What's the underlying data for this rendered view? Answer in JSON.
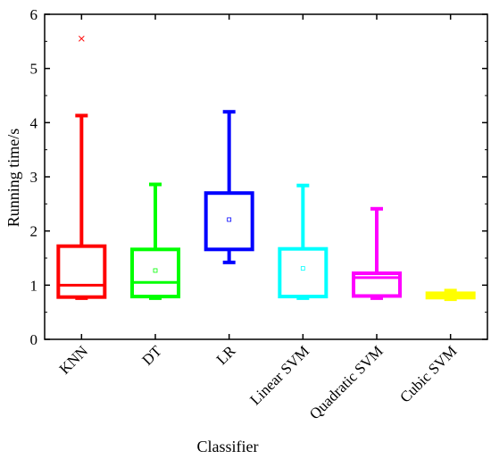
{
  "chart_data": {
    "type": "box",
    "title": "",
    "xlabel": "Classifier",
    "ylabel": "Running time/s",
    "ylim": [
      0,
      6
    ],
    "yticks": [
      "0",
      "1",
      "2",
      "3",
      "4",
      "5",
      "6"
    ],
    "grid": false,
    "legend": "none",
    "categories": [
      "KNN",
      "DT",
      "LR",
      "Linear SVM",
      "Quadratic SVM",
      "Cubic SVM"
    ],
    "boxes": [
      {
        "name": "KNN",
        "color": "#ff0000",
        "min": 0.76,
        "q1": 0.78,
        "median": 1.0,
        "q3": 1.72,
        "max": 4.13,
        "mean": null,
        "outliers": [
          5.55
        ]
      },
      {
        "name": "DT",
        "color": "#00ff00",
        "min": 0.76,
        "q1": 0.79,
        "median": 1.05,
        "q3": 1.66,
        "max": 2.86,
        "mean": 1.27,
        "outliers": []
      },
      {
        "name": "LR",
        "color": "#0000ff",
        "min": 1.42,
        "q1": 1.66,
        "median": 1.66,
        "q3": 2.7,
        "max": 4.2,
        "mean": 2.21,
        "outliers": []
      },
      {
        "name": "Linear SVM",
        "color": "#00ffff",
        "min": 0.76,
        "q1": 0.79,
        "median": 0.79,
        "q3": 1.67,
        "max": 2.84,
        "mean": 1.31,
        "outliers": []
      },
      {
        "name": "Quadratic SVM",
        "color": "#ff00ff",
        "min": 0.76,
        "q1": 0.8,
        "median": 1.14,
        "q3": 1.22,
        "max": 2.41,
        "mean": null,
        "outliers": []
      },
      {
        "name": "Cubic SVM",
        "color": "#ffff00",
        "min": 0.74,
        "q1": 0.77,
        "median": 0.8,
        "q3": 0.85,
        "max": 0.9,
        "mean": null,
        "outliers": []
      }
    ]
  }
}
